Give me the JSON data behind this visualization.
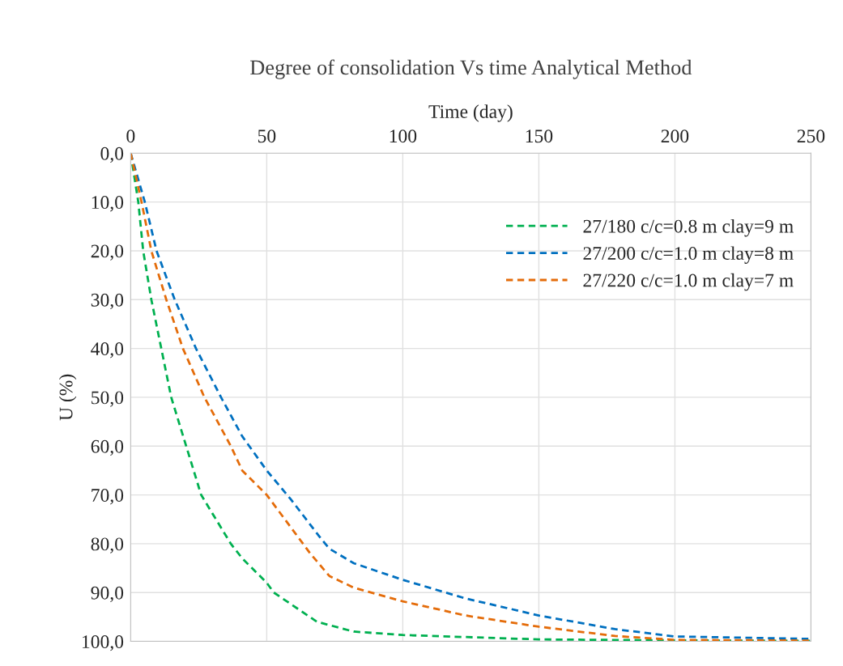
{
  "chart_data": {
    "type": "line",
    "title": "Degree of consolidation Vs time Analytical Method",
    "xlabel": "Time (day)",
    "ylabel": "U (%)",
    "xlim": [
      0,
      250
    ],
    "xticks": [
      0,
      50,
      100,
      150,
      200,
      250
    ],
    "ylim": [
      100,
      0
    ],
    "yticks": [
      {
        "value": 0,
        "label": "0,0"
      },
      {
        "value": 10,
        "label": "10,0"
      },
      {
        "value": 20,
        "label": "20,0"
      },
      {
        "value": 30,
        "label": "30,0"
      },
      {
        "value": 40,
        "label": "40,0"
      },
      {
        "value": 50,
        "label": "50,0"
      },
      {
        "value": 60,
        "label": "60,0"
      },
      {
        "value": 70,
        "label": "70,0"
      },
      {
        "value": 80,
        "label": "80,0"
      },
      {
        "value": 90,
        "label": "90,0"
      },
      {
        "value": 100,
        "label": "100,0"
      }
    ],
    "grid": true,
    "legend": "top right",
    "line_style": "dashed",
    "marker": "none",
    "series": [
      {
        "name": "27/180 c/c=0.8 m clay=9 m",
        "color": "#00b050",
        "x": [
          0,
          2.8,
          4.6,
          7.6,
          14.9,
          25.9,
          36.8,
          41,
          50,
          52.6,
          68.5,
          82,
          100,
          150,
          200,
          250
        ],
        "values": [
          0,
          10,
          20,
          30,
          50,
          70,
          80,
          83,
          88,
          90,
          96,
          98,
          98.7,
          99.6,
          99.8,
          99.9
        ]
      },
      {
        "name": "27/200 c/c=1.0 m clay=8 m",
        "color": "#0070c0",
        "x": [
          0,
          5.2,
          9.5,
          16.2,
          24,
          33.2,
          41,
          50,
          59,
          70,
          73,
          82,
          100,
          123,
          150,
          178,
          200,
          250
        ],
        "values": [
          0,
          10,
          20,
          30,
          40,
          50,
          58,
          65,
          71,
          79,
          81,
          84,
          87.4,
          91.2,
          94.7,
          97.5,
          99,
          99.5
        ]
      },
      {
        "name": "27/220 c/c=1.0 m clay=7 m",
        "color": "#e46c0a",
        "x": [
          0,
          4,
          7.6,
          13.1,
          19.2,
          27.1,
          36.8,
          41,
          50,
          66,
          73,
          82,
          100,
          123,
          150,
          178,
          200,
          250
        ],
        "values": [
          0,
          10,
          20,
          30,
          40,
          50,
          60,
          65,
          70,
          82,
          86.6,
          89,
          91.8,
          94.7,
          97,
          98.9,
          99.7,
          99.85
        ]
      }
    ]
  }
}
